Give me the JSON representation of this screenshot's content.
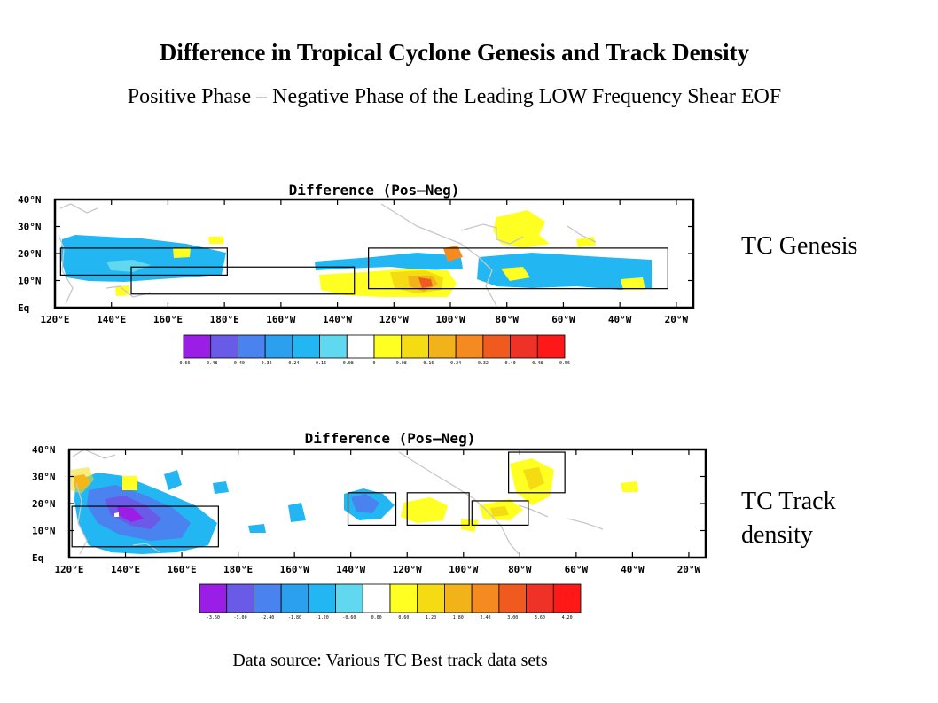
{
  "title": "Difference in Tropical Cyclone Genesis and Track Density",
  "subtitle": "Positive Phase – Negative Phase of the Leading LOW Frequency Shear EOF",
  "source": "Data source: Various TC Best track data sets",
  "colors": [
    "#9a1ee6",
    "#6a5ae8",
    "#4a82f0",
    "#2aa0ee",
    "#22b6f2",
    "#5fd8f0",
    "#ffffff",
    "#ffffff",
    "#ffff22",
    "#f5dc12",
    "#f2b21a",
    "#f48a20",
    "#f05a1e",
    "#ee3228",
    "#ff1818"
  ],
  "coast_color": "#c8c8c8",
  "y_labels": [
    "40°N",
    "30°N",
    "20°N",
    "10°N",
    "Eq"
  ],
  "x_labels": [
    "120°E",
    "140°E",
    "160°E",
    "180°E",
    "160°W",
    "140°W",
    "120°W",
    "100°W",
    "80°W",
    "60°W",
    "40°W",
    "20°W"
  ],
  "genesis": {
    "map_title": "Difference (Pos–Neg)",
    "label": "TC Genesis",
    "colorbar": [
      "-0.66",
      "-0.48",
      "-0.40",
      "-0.32",
      "-0.24",
      "-0.16",
      "-0.08",
      "0",
      "0.08",
      "0.16",
      "0.24",
      "0.32",
      "0.40",
      "0.48",
      "0.56"
    ],
    "boxes_deg": [
      [
        122,
        22,
        181,
        12
      ],
      [
        147,
        15,
        226,
        5
      ],
      [
        231,
        22,
        337,
        7
      ]
    ]
  },
  "track": {
    "map_title": "Difference (Pos–Neg)",
    "label_lines": [
      "TC Track",
      "density"
    ],
    "colorbar": [
      "-3.60",
      "-3.00",
      "-2.40",
      "-1.80",
      "-1.20",
      "-0.60",
      "0.00",
      "0.60",
      "1.20",
      "1.80",
      "2.40",
      "3.00",
      "3.60",
      "4.20"
    ],
    "boxes_deg": [
      [
        121,
        19,
        173,
        4
      ],
      [
        219,
        24,
        236,
        12
      ],
      [
        240,
        24,
        262,
        12
      ],
      [
        263,
        21,
        283,
        12
      ],
      [
        276,
        39,
        296,
        24
      ]
    ]
  }
}
